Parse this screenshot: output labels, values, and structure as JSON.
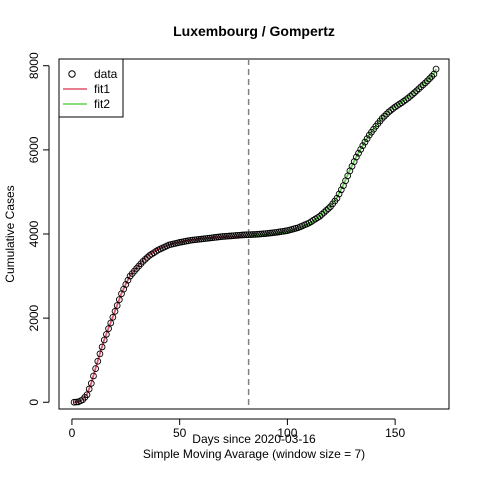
{
  "chart_data": {
    "type": "scatter",
    "title": "Luxembourg / Gompertz",
    "xlabel": "Days since 2020-03-16",
    "xlabel2": "Simple Moving Avarage (window size = 7)",
    "ylabel": "Cumulative Cases",
    "xlim": [
      -6,
      175
    ],
    "ylim": [
      -160,
      8160
    ],
    "x_ticks": [
      0,
      50,
      100,
      150
    ],
    "y_ticks": [
      0,
      2000,
      4000,
      6000,
      8000
    ],
    "vline": {
      "x": 82,
      "style": "dashed",
      "color": "#808080"
    },
    "legend": {
      "position": "top-left",
      "entries": [
        {
          "label": "data",
          "marker": "circle",
          "color": "#000000"
        },
        {
          "label": "fit1",
          "marker": "line",
          "color": "#DF536B"
        },
        {
          "label": "fit2",
          "marker": "line",
          "color": "#61D04F"
        }
      ]
    },
    "series": [
      {
        "name": "data",
        "kind": "points",
        "x_start": 1,
        "x_end": 169,
        "anchors": [
          [
            1,
            0
          ],
          [
            3,
            10
          ],
          [
            5,
            60
          ],
          [
            7,
            180
          ],
          [
            9,
            450
          ],
          [
            11,
            800
          ],
          [
            13,
            1150
          ],
          [
            15,
            1480
          ],
          [
            17,
            1750
          ],
          [
            19,
            2020
          ],
          [
            21,
            2300
          ],
          [
            23,
            2580
          ],
          [
            25,
            2800
          ],
          [
            27,
            3000
          ],
          [
            30,
            3180
          ],
          [
            33,
            3350
          ],
          [
            36,
            3490
          ],
          [
            40,
            3620
          ],
          [
            45,
            3740
          ],
          [
            50,
            3800
          ],
          [
            55,
            3850
          ],
          [
            60,
            3880
          ],
          [
            65,
            3910
          ],
          [
            70,
            3940
          ],
          [
            75,
            3960
          ],
          [
            80,
            3980
          ],
          [
            85,
            3990
          ],
          [
            90,
            4010
          ],
          [
            95,
            4040
          ],
          [
            100,
            4080
          ],
          [
            105,
            4150
          ],
          [
            110,
            4260
          ],
          [
            115,
            4420
          ],
          [
            120,
            4650
          ],
          [
            123,
            4850
          ],
          [
            126,
            5150
          ],
          [
            129,
            5500
          ],
          [
            132,
            5830
          ],
          [
            135,
            6100
          ],
          [
            138,
            6350
          ],
          [
            141,
            6560
          ],
          [
            144,
            6750
          ],
          [
            147,
            6900
          ],
          [
            150,
            7020
          ],
          [
            153,
            7120
          ],
          [
            156,
            7230
          ],
          [
            159,
            7360
          ],
          [
            162,
            7500
          ],
          [
            165,
            7640
          ],
          [
            168,
            7800
          ],
          [
            169,
            7920
          ]
        ]
      },
      {
        "name": "fit1",
        "kind": "line",
        "color": "#DF536B",
        "points": [
          [
            1,
            0
          ],
          [
            3,
            10
          ],
          [
            5,
            70
          ],
          [
            7,
            190
          ],
          [
            9,
            460
          ],
          [
            11,
            810
          ],
          [
            13,
            1160
          ],
          [
            15,
            1490
          ],
          [
            17,
            1760
          ],
          [
            19,
            2030
          ],
          [
            21,
            2310
          ],
          [
            23,
            2590
          ],
          [
            25,
            2810
          ],
          [
            27,
            3010
          ],
          [
            30,
            3190
          ],
          [
            33,
            3370
          ],
          [
            36,
            3510
          ],
          [
            40,
            3640
          ],
          [
            45,
            3750
          ],
          [
            50,
            3810
          ],
          [
            55,
            3860
          ],
          [
            60,
            3890
          ],
          [
            65,
            3910
          ],
          [
            70,
            3925
          ],
          [
            75,
            3935
          ],
          [
            81,
            3945
          ]
        ]
      },
      {
        "name": "fit2",
        "kind": "line",
        "color": "#61D04F",
        "points": [
          [
            82,
            3940
          ],
          [
            85,
            3960
          ],
          [
            90,
            3980
          ],
          [
            95,
            4010
          ],
          [
            100,
            4050
          ],
          [
            105,
            4120
          ],
          [
            110,
            4240
          ],
          [
            115,
            4420
          ],
          [
            120,
            4660
          ],
          [
            123,
            4870
          ],
          [
            126,
            5170
          ],
          [
            129,
            5520
          ],
          [
            132,
            5840
          ],
          [
            135,
            6110
          ],
          [
            138,
            6360
          ],
          [
            141,
            6570
          ],
          [
            144,
            6760
          ],
          [
            147,
            6910
          ],
          [
            150,
            7030
          ],
          [
            153,
            7130
          ],
          [
            156,
            7240
          ],
          [
            159,
            7370
          ],
          [
            162,
            7510
          ],
          [
            165,
            7650
          ],
          [
            168,
            7810
          ],
          [
            169,
            7920
          ]
        ]
      }
    ]
  }
}
